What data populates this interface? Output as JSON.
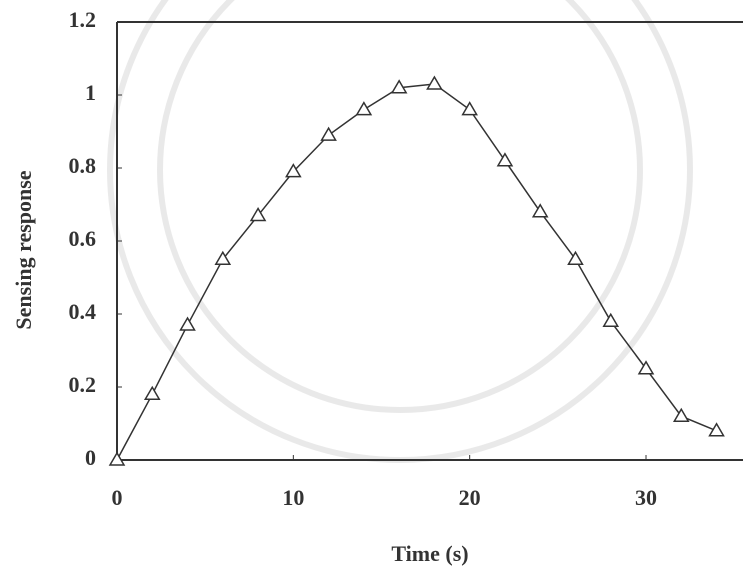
{
  "chart_data": {
    "type": "line",
    "x_label": "Time (s)",
    "y_label": "Sensing response",
    "x": [
      0,
      2,
      4,
      6,
      8,
      10,
      12,
      14,
      16,
      18,
      20,
      22,
      24,
      26,
      28,
      30,
      32,
      34
    ],
    "series": [
      {
        "name": "Sensing response",
        "color": "#333333",
        "values": [
          0,
          0.18,
          0.37,
          0.55,
          0.67,
          0.79,
          0.89,
          0.96,
          1.02,
          1.03,
          0.96,
          0.82,
          0.68,
          0.55,
          0.38,
          0.25,
          0.12,
          0.08
        ]
      }
    ],
    "xlim": [
      0,
      35.5
    ],
    "xticks": [
      0,
      10,
      20,
      30
    ],
    "ylim": [
      0,
      1.2
    ],
    "yticks": [
      0,
      0.2,
      0.4,
      0.6,
      0.8,
      1,
      1.2
    ]
  }
}
